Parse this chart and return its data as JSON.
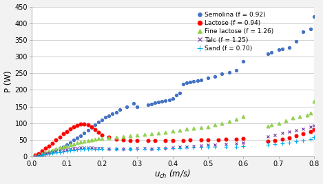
{
  "title": "",
  "xlabel": "u_{ch} (m/s)",
  "ylabel": "P (W)",
  "xlim": [
    0,
    0.8
  ],
  "ylim": [
    0,
    450
  ],
  "yticks": [
    0,
    50,
    100,
    150,
    200,
    250,
    300,
    350,
    400,
    450
  ],
  "xticks": [
    0.0,
    0.1,
    0.2,
    0.3,
    0.4,
    0.5,
    0.6,
    0.7,
    0.8
  ],
  "series": [
    {
      "name": "Semolina",
      "label": "Semolina (f = 0.92)",
      "color": "#4472C4",
      "marker": "o",
      "x": [
        0.01,
        0.02,
        0.03,
        0.04,
        0.05,
        0.06,
        0.07,
        0.08,
        0.09,
        0.1,
        0.11,
        0.12,
        0.13,
        0.14,
        0.15,
        0.16,
        0.17,
        0.18,
        0.19,
        0.2,
        0.21,
        0.22,
        0.23,
        0.24,
        0.25,
        0.27,
        0.29,
        0.3,
        0.33,
        0.34,
        0.35,
        0.36,
        0.37,
        0.38,
        0.39,
        0.4,
        0.41,
        0.42,
        0.43,
        0.44,
        0.45,
        0.46,
        0.47,
        0.48,
        0.5,
        0.52,
        0.54,
        0.56,
        0.58,
        0.6,
        0.67,
        0.68,
        0.7,
        0.71,
        0.73,
        0.75,
        0.77,
        0.79,
        0.8
      ],
      "y": [
        3,
        5,
        8,
        10,
        13,
        16,
        20,
        24,
        30,
        36,
        42,
        50,
        56,
        63,
        70,
        78,
        86,
        95,
        103,
        110,
        117,
        122,
        128,
        133,
        140,
        150,
        160,
        150,
        155,
        158,
        162,
        163,
        165,
        167,
        170,
        173,
        185,
        190,
        218,
        222,
        224,
        226,
        228,
        230,
        235,
        240,
        248,
        252,
        258,
        285,
        308,
        312,
        320,
        322,
        327,
        345,
        375,
        382,
        420
      ]
    },
    {
      "name": "Lactose",
      "label": "Lactose (f = 0.94)",
      "color": "#FF0000",
      "marker": "o",
      "x": [
        0.01,
        0.02,
        0.03,
        0.04,
        0.05,
        0.06,
        0.07,
        0.08,
        0.09,
        0.1,
        0.11,
        0.12,
        0.13,
        0.14,
        0.15,
        0.16,
        0.17,
        0.18,
        0.19,
        0.2,
        0.22,
        0.24,
        0.26,
        0.28,
        0.3,
        0.33,
        0.35,
        0.38,
        0.4,
        0.43,
        0.45,
        0.48,
        0.5,
        0.53,
        0.55,
        0.58,
        0.6,
        0.67,
        0.69,
        0.71,
        0.73,
        0.75,
        0.77,
        0.79,
        0.8
      ],
      "y": [
        4,
        9,
        16,
        24,
        32,
        40,
        50,
        58,
        68,
        75,
        82,
        88,
        93,
        97,
        98,
        95,
        88,
        80,
        72,
        65,
        58,
        52,
        50,
        48,
        47,
        47,
        48,
        48,
        48,
        48,
        50,
        50,
        50,
        50,
        52,
        52,
        53,
        46,
        48,
        52,
        56,
        62,
        68,
        75,
        80
      ]
    },
    {
      "name": "Fine lactose",
      "label": "Fine lactose (f = 1.26)",
      "color": "#92D050",
      "marker": "^",
      "x": [
        0.01,
        0.02,
        0.03,
        0.04,
        0.05,
        0.06,
        0.07,
        0.08,
        0.09,
        0.1,
        0.11,
        0.12,
        0.13,
        0.14,
        0.15,
        0.16,
        0.17,
        0.18,
        0.19,
        0.2,
        0.22,
        0.24,
        0.26,
        0.28,
        0.3,
        0.32,
        0.34,
        0.36,
        0.38,
        0.4,
        0.42,
        0.44,
        0.46,
        0.48,
        0.5,
        0.52,
        0.54,
        0.56,
        0.58,
        0.6,
        0.67,
        0.68,
        0.7,
        0.72,
        0.74,
        0.76,
        0.78,
        0.79,
        0.8
      ],
      "y": [
        2,
        5,
        8,
        12,
        16,
        19,
        23,
        26,
        29,
        32,
        35,
        38,
        41,
        44,
        46,
        48,
        50,
        52,
        53,
        54,
        56,
        58,
        60,
        62,
        64,
        66,
        68,
        70,
        73,
        76,
        79,
        82,
        84,
        87,
        90,
        95,
        100,
        105,
        112,
        120,
        92,
        95,
        100,
        107,
        115,
        120,
        125,
        130,
        165
      ]
    },
    {
      "name": "Talc",
      "label": "Talc (f = 1.25)",
      "color": "#7030A0",
      "marker": "x",
      "x": [
        0.01,
        0.02,
        0.03,
        0.04,
        0.05,
        0.06,
        0.07,
        0.08,
        0.09,
        0.1,
        0.11,
        0.12,
        0.13,
        0.14,
        0.15,
        0.16,
        0.17,
        0.18,
        0.19,
        0.2,
        0.22,
        0.24,
        0.26,
        0.28,
        0.3,
        0.32,
        0.34,
        0.36,
        0.38,
        0.4,
        0.42,
        0.44,
        0.46,
        0.48,
        0.5,
        0.52,
        0.55,
        0.58,
        0.6,
        0.67,
        0.69,
        0.71,
        0.73,
        0.75,
        0.77,
        0.79,
        0.8
      ],
      "y": [
        1,
        3,
        5,
        8,
        10,
        12,
        14,
        16,
        18,
        20,
        22,
        24,
        25,
        26,
        27,
        27,
        26,
        25,
        24,
        24,
        23,
        23,
        22,
        23,
        24,
        24,
        23,
        24,
        25,
        27,
        28,
        30,
        32,
        33,
        35,
        36,
        38,
        40,
        42,
        60,
        65,
        70,
        75,
        78,
        82,
        88,
        93
      ]
    },
    {
      "name": "Sand",
      "label": "Sand (f = 0.70)",
      "color": "#00B0F0",
      "marker": "+",
      "x": [
        0.01,
        0.02,
        0.03,
        0.04,
        0.05,
        0.06,
        0.07,
        0.08,
        0.09,
        0.1,
        0.11,
        0.12,
        0.13,
        0.14,
        0.15,
        0.16,
        0.17,
        0.18,
        0.19,
        0.2,
        0.22,
        0.24,
        0.26,
        0.28,
        0.3,
        0.32,
        0.34,
        0.36,
        0.38,
        0.4,
        0.42,
        0.44,
        0.46,
        0.48,
        0.5,
        0.52,
        0.55,
        0.58,
        0.6,
        0.67,
        0.69,
        0.71,
        0.73,
        0.75,
        0.77,
        0.79,
        0.8
      ],
      "y": [
        1,
        2,
        4,
        6,
        8,
        10,
        12,
        13,
        15,
        17,
        18,
        19,
        20,
        21,
        22,
        22,
        22,
        23,
        23,
        23,
        23,
        23,
        23,
        23,
        23,
        23,
        23,
        23,
        24,
        25,
        25,
        26,
        27,
        27,
        28,
        28,
        29,
        30,
        31,
        36,
        38,
        40,
        42,
        45,
        48,
        52,
        57
      ]
    }
  ],
  "background_color": "#f2f2f2",
  "plot_bg": "#ffffff",
  "grid_color": "#c8c8c8",
  "legend_fontsize": 6.5,
  "axis_fontsize": 8.5,
  "tick_fontsize": 7
}
